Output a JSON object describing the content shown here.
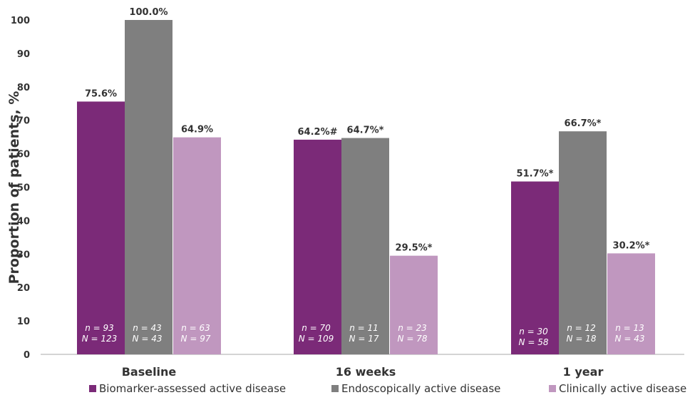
{
  "chart_data": {
    "type": "bar",
    "title": "",
    "xlabel": "",
    "ylabel": "Proportion of patients, %",
    "ylim": [
      0,
      100
    ],
    "yticks": [
      0,
      10,
      20,
      30,
      40,
      50,
      60,
      70,
      80,
      90,
      100
    ],
    "grid": false,
    "legend_position": "bottom",
    "categories": [
      "Baseline",
      "16 weeks",
      "1 year"
    ],
    "series": [
      {
        "name": "Biomarker-assessed active disease",
        "color": "#7b2a78",
        "values": [
          75.6,
          64.2,
          51.7
        ],
        "labels": [
          "75.6%",
          "64.2%#",
          "51.7%*"
        ],
        "n": [
          "n = 93",
          "n = 70",
          "n = 30"
        ],
        "N": [
          "N = 123",
          "N = 109",
          "N = 58"
        ]
      },
      {
        "name": "Endoscopically active disease",
        "color": "#7f7f7f",
        "values": [
          100.0,
          64.7,
          66.7
        ],
        "labels": [
          "100.0%",
          "64.7%*",
          "66.7%*"
        ],
        "n": [
          "n = 43",
          "n = 11",
          "n = 12"
        ],
        "N": [
          "N = 43",
          "N = 17",
          "N = 18"
        ]
      },
      {
        "name": "Clinically active disease",
        "color": "#c097bf",
        "values": [
          64.9,
          29.5,
          30.2
        ],
        "labels": [
          "64.9%",
          "29.5%*",
          "30.2%*"
        ],
        "n": [
          "n = 63",
          "n = 23",
          "n = 13"
        ],
        "N": [
          "N = 97",
          "N = 78",
          "N = 43"
        ]
      }
    ]
  }
}
